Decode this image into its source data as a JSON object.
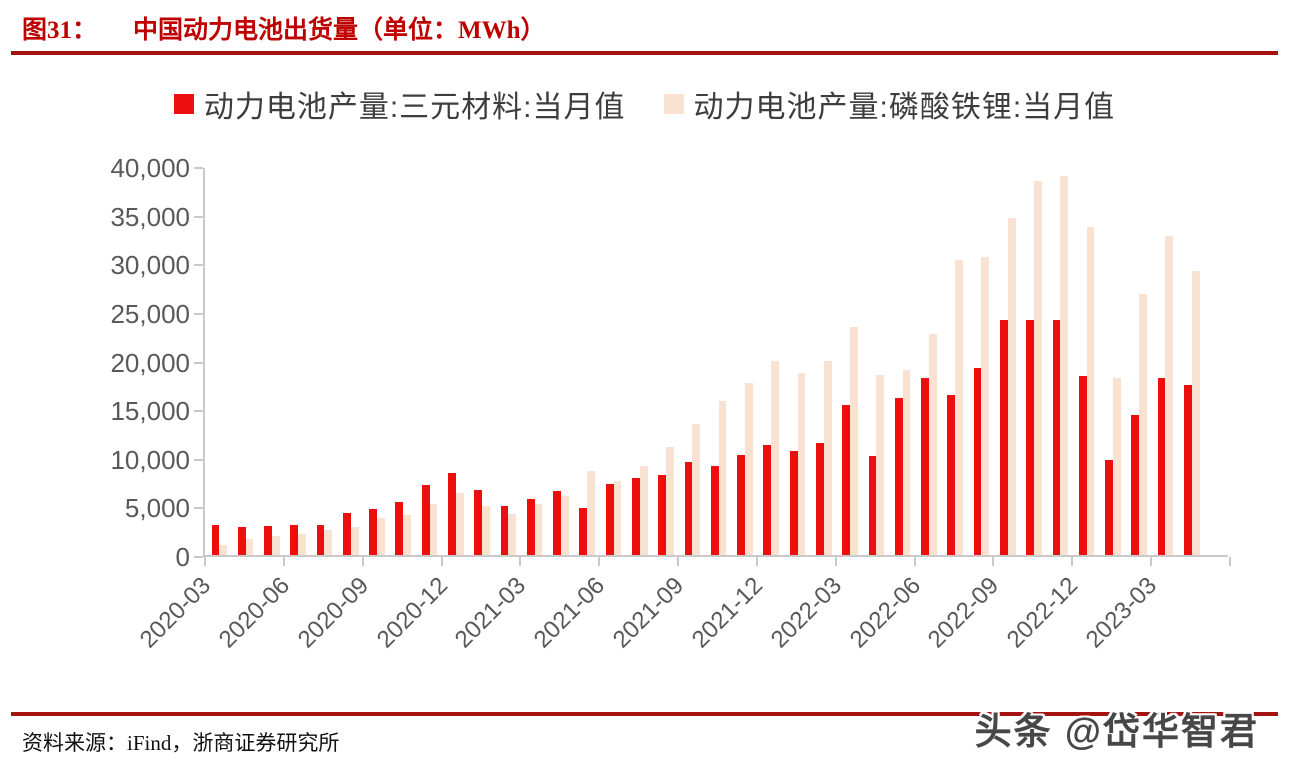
{
  "figure": {
    "label": "图31：",
    "title": "中国动力电池出货量（单位：MWh）"
  },
  "legend": [
    {
      "label": "动力电池产量:三元材料:当月值",
      "color": "#ed0e0e"
    },
    {
      "label": "动力电池产量:磷酸铁锂:当月值",
      "color": "#f9e2d2"
    }
  ],
  "footer": {
    "source": "资料来源：iFind，浙商证券研究所",
    "watermark": "头条 @岱华智君"
  },
  "colors": {
    "accent_rule": "#a51212",
    "title_red": "#bf0000",
    "axis_line": "#c9c9c9",
    "axis_text": "#595959"
  },
  "chart_data": {
    "type": "bar",
    "title": "中国动力电池出货量",
    "unit": "MWh",
    "xlabel": "",
    "ylabel": "",
    "ylim": [
      0,
      40000
    ],
    "grid": false,
    "legend_position": "top",
    "y_ticks": [
      0,
      5000,
      10000,
      15000,
      20000,
      25000,
      30000,
      35000,
      40000
    ],
    "y_tick_labels": [
      "0",
      "5,000",
      "10,000",
      "15,000",
      "20,000",
      "25,000",
      "30,000",
      "35,000",
      "40,000"
    ],
    "x_tick_labels": [
      "2020-03",
      "2020-06",
      "2020-09",
      "2020-12",
      "2021-03",
      "2021-06",
      "2021-09",
      "2021-12",
      "2022-03",
      "2022-06",
      "2022-09",
      "2022-12",
      "2023-03"
    ],
    "categories": [
      "2020-03",
      "2020-04",
      "2020-05",
      "2020-06",
      "2020-07",
      "2020-08",
      "2020-09",
      "2020-10",
      "2020-11",
      "2020-12",
      "2021-01",
      "2021-02",
      "2021-03",
      "2021-04",
      "2021-05",
      "2021-06",
      "2021-07",
      "2021-08",
      "2021-09",
      "2021-10",
      "2021-11",
      "2021-12",
      "2022-01",
      "2022-02",
      "2022-03",
      "2022-04",
      "2022-05",
      "2022-06",
      "2022-07",
      "2022-08",
      "2022-09",
      "2022-10",
      "2022-11",
      "2022-12",
      "2023-01",
      "2023-02",
      "2023-03",
      "2023-04"
    ],
    "series": [
      {
        "name": "动力电池产量:三元材料:当月值",
        "color": "#ed0e0e",
        "values": [
          3100,
          2860,
          3000,
          3070,
          3140,
          4300,
          4750,
          5450,
          7230,
          8400,
          6680,
          5050,
          5760,
          6550,
          4870,
          7270,
          7920,
          8260,
          9600,
          9180,
          10320,
          11340,
          10690,
          11520,
          15420,
          10140,
          16140,
          18200,
          16450,
          19200,
          24200,
          24200,
          24150,
          18400,
          9750,
          14450,
          18200,
          17450
        ]
      },
      {
        "name": "动力电池产量:磷酸铁锂:当月值",
        "color": "#f9e2d2",
        "values": [
          1030,
          1690,
          1950,
          2140,
          2590,
          2900,
          3800,
          4100,
          5240,
          6400,
          5040,
          4220,
          5280,
          6050,
          8600,
          7610,
          9150,
          11070,
          13430,
          15870,
          17720,
          19980,
          18680,
          19950,
          23410,
          18510,
          19020,
          22700,
          30360,
          30640,
          34680,
          38490,
          38930,
          33720,
          18200,
          26870,
          32830,
          29230
        ]
      }
    ]
  }
}
